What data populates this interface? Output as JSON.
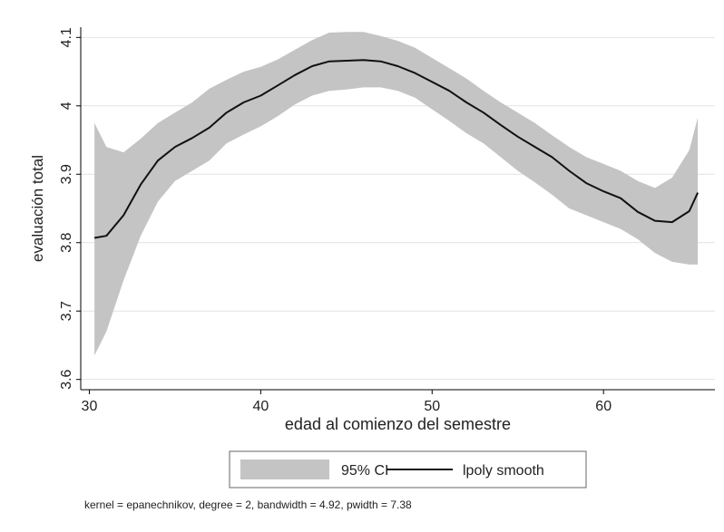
{
  "chart_data": {
    "type": "area",
    "xlabel": "edad al comienzo del semestre",
    "ylabel": "evaluación total",
    "xlim": [
      29.5,
      66.5
    ],
    "ylim": [
      3.585,
      4.115
    ],
    "xticks": [
      30,
      40,
      50,
      60
    ],
    "yticks": [
      3.6,
      3.7,
      3.8,
      3.9,
      4,
      4.1
    ],
    "xtick_labels": [
      "30",
      "40",
      "50",
      "60"
    ],
    "ytick_labels": [
      "3.6",
      "3.7",
      "3.8",
      "3.9",
      "4",
      "4.1"
    ],
    "grid": "horizontal",
    "legend_position": "bottom",
    "note": "kernel = epanechnikov, degree = 2, bandwidth = 4.92, pwidth = 7.38",
    "colors": {
      "plot_background": "#ffffff",
      "outer_background": "#ffffff",
      "ci_fill": "#c4c4c4",
      "smooth_line": "#111111",
      "grid": "#e2e2e2"
    },
    "series": [
      {
        "name": "95% CI",
        "kind": "band",
        "x": [
          30.3,
          31,
          32,
          33,
          34,
          35,
          36,
          37,
          38,
          39,
          40,
          41,
          42,
          43,
          44,
          45,
          46,
          47,
          48,
          49,
          50,
          51,
          52,
          53,
          54,
          55,
          56,
          57,
          58,
          59,
          60,
          61,
          62,
          63,
          64,
          65,
          65.5
        ],
        "upper": [
          3.975,
          3.94,
          3.932,
          3.952,
          3.975,
          3.99,
          4.005,
          4.025,
          4.038,
          4.05,
          4.057,
          4.068,
          4.082,
          4.096,
          4.107,
          4.108,
          4.108,
          4.102,
          4.095,
          4.085,
          4.07,
          4.055,
          4.04,
          4.022,
          4.005,
          3.99,
          3.975,
          3.957,
          3.94,
          3.925,
          3.915,
          3.905,
          3.89,
          3.88,
          3.895,
          3.935,
          3.983
        ],
        "lower": [
          3.635,
          3.67,
          3.745,
          3.81,
          3.86,
          3.89,
          3.905,
          3.92,
          3.945,
          3.958,
          3.97,
          3.985,
          4.002,
          4.015,
          4.022,
          4.024,
          4.027,
          4.027,
          4.022,
          4.012,
          3.995,
          3.978,
          3.96,
          3.945,
          3.925,
          3.905,
          3.888,
          3.87,
          3.85,
          3.84,
          3.83,
          3.82,
          3.805,
          3.785,
          3.772,
          3.768,
          3.768
        ]
      },
      {
        "name": "lpoly smooth",
        "kind": "line",
        "x": [
          30.3,
          31,
          32,
          33,
          34,
          35,
          36,
          37,
          38,
          39,
          40,
          41,
          42,
          43,
          44,
          45,
          46,
          47,
          48,
          49,
          50,
          51,
          52,
          53,
          54,
          55,
          56,
          57,
          58,
          59,
          60,
          61,
          62,
          63,
          64,
          65,
          65.5
        ],
        "y": [
          3.807,
          3.81,
          3.84,
          3.885,
          3.92,
          3.94,
          3.953,
          3.968,
          3.99,
          4.005,
          4.015,
          4.03,
          4.045,
          4.058,
          4.065,
          4.066,
          4.067,
          4.065,
          4.058,
          4.048,
          4.035,
          4.022,
          4.005,
          3.99,
          3.972,
          3.955,
          3.94,
          3.925,
          3.905,
          3.887,
          3.875,
          3.865,
          3.845,
          3.832,
          3.83,
          3.846,
          3.873
        ]
      }
    ]
  }
}
